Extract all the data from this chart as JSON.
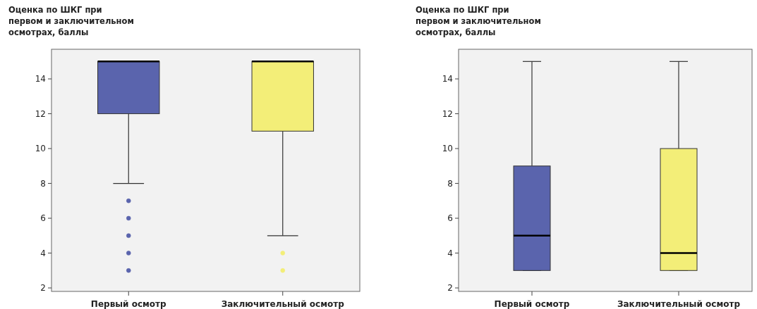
{
  "chart_data": [
    {
      "type": "box",
      "title": "Оценка по ШКГ при\nпервом и заключительном\nосмотрах, баллы",
      "categories": [
        "Первый осмотр",
        "Заключительный осмотр"
      ],
      "colors": [
        "#5a64ad",
        "#f3ee78"
      ],
      "boxes": [
        {
          "low": 8,
          "q1": 12,
          "median": 15,
          "q3": 15,
          "high": 15,
          "outliers": [
            7,
            6,
            5,
            4,
            3
          ]
        },
        {
          "low": 5,
          "q1": 11,
          "median": 15,
          "q3": 15,
          "high": 15,
          "outliers": [
            4,
            3
          ]
        }
      ],
      "ylim": [
        1.8,
        15.7
      ],
      "yticks": [
        2,
        4,
        6,
        8,
        10,
        12,
        14
      ],
      "grid": false
    },
    {
      "type": "box",
      "title": "Оценка по ШКГ при\nпервом и заключительном\nосмотрах, баллы",
      "categories": [
        "Первый осмотр",
        "Заключительный осмотр"
      ],
      "colors": [
        "#5a64ad",
        "#f3ee78"
      ],
      "boxes": [
        {
          "low": 3,
          "q1": 3,
          "median": 5,
          "q3": 9,
          "high": 15
        },
        {
          "low": 3,
          "q1": 3,
          "median": 4,
          "q3": 10,
          "high": 15
        }
      ],
      "ylim": [
        1.8,
        15.7
      ],
      "yticks": [
        2,
        4,
        6,
        8,
        10,
        12,
        14
      ],
      "grid": false
    }
  ]
}
